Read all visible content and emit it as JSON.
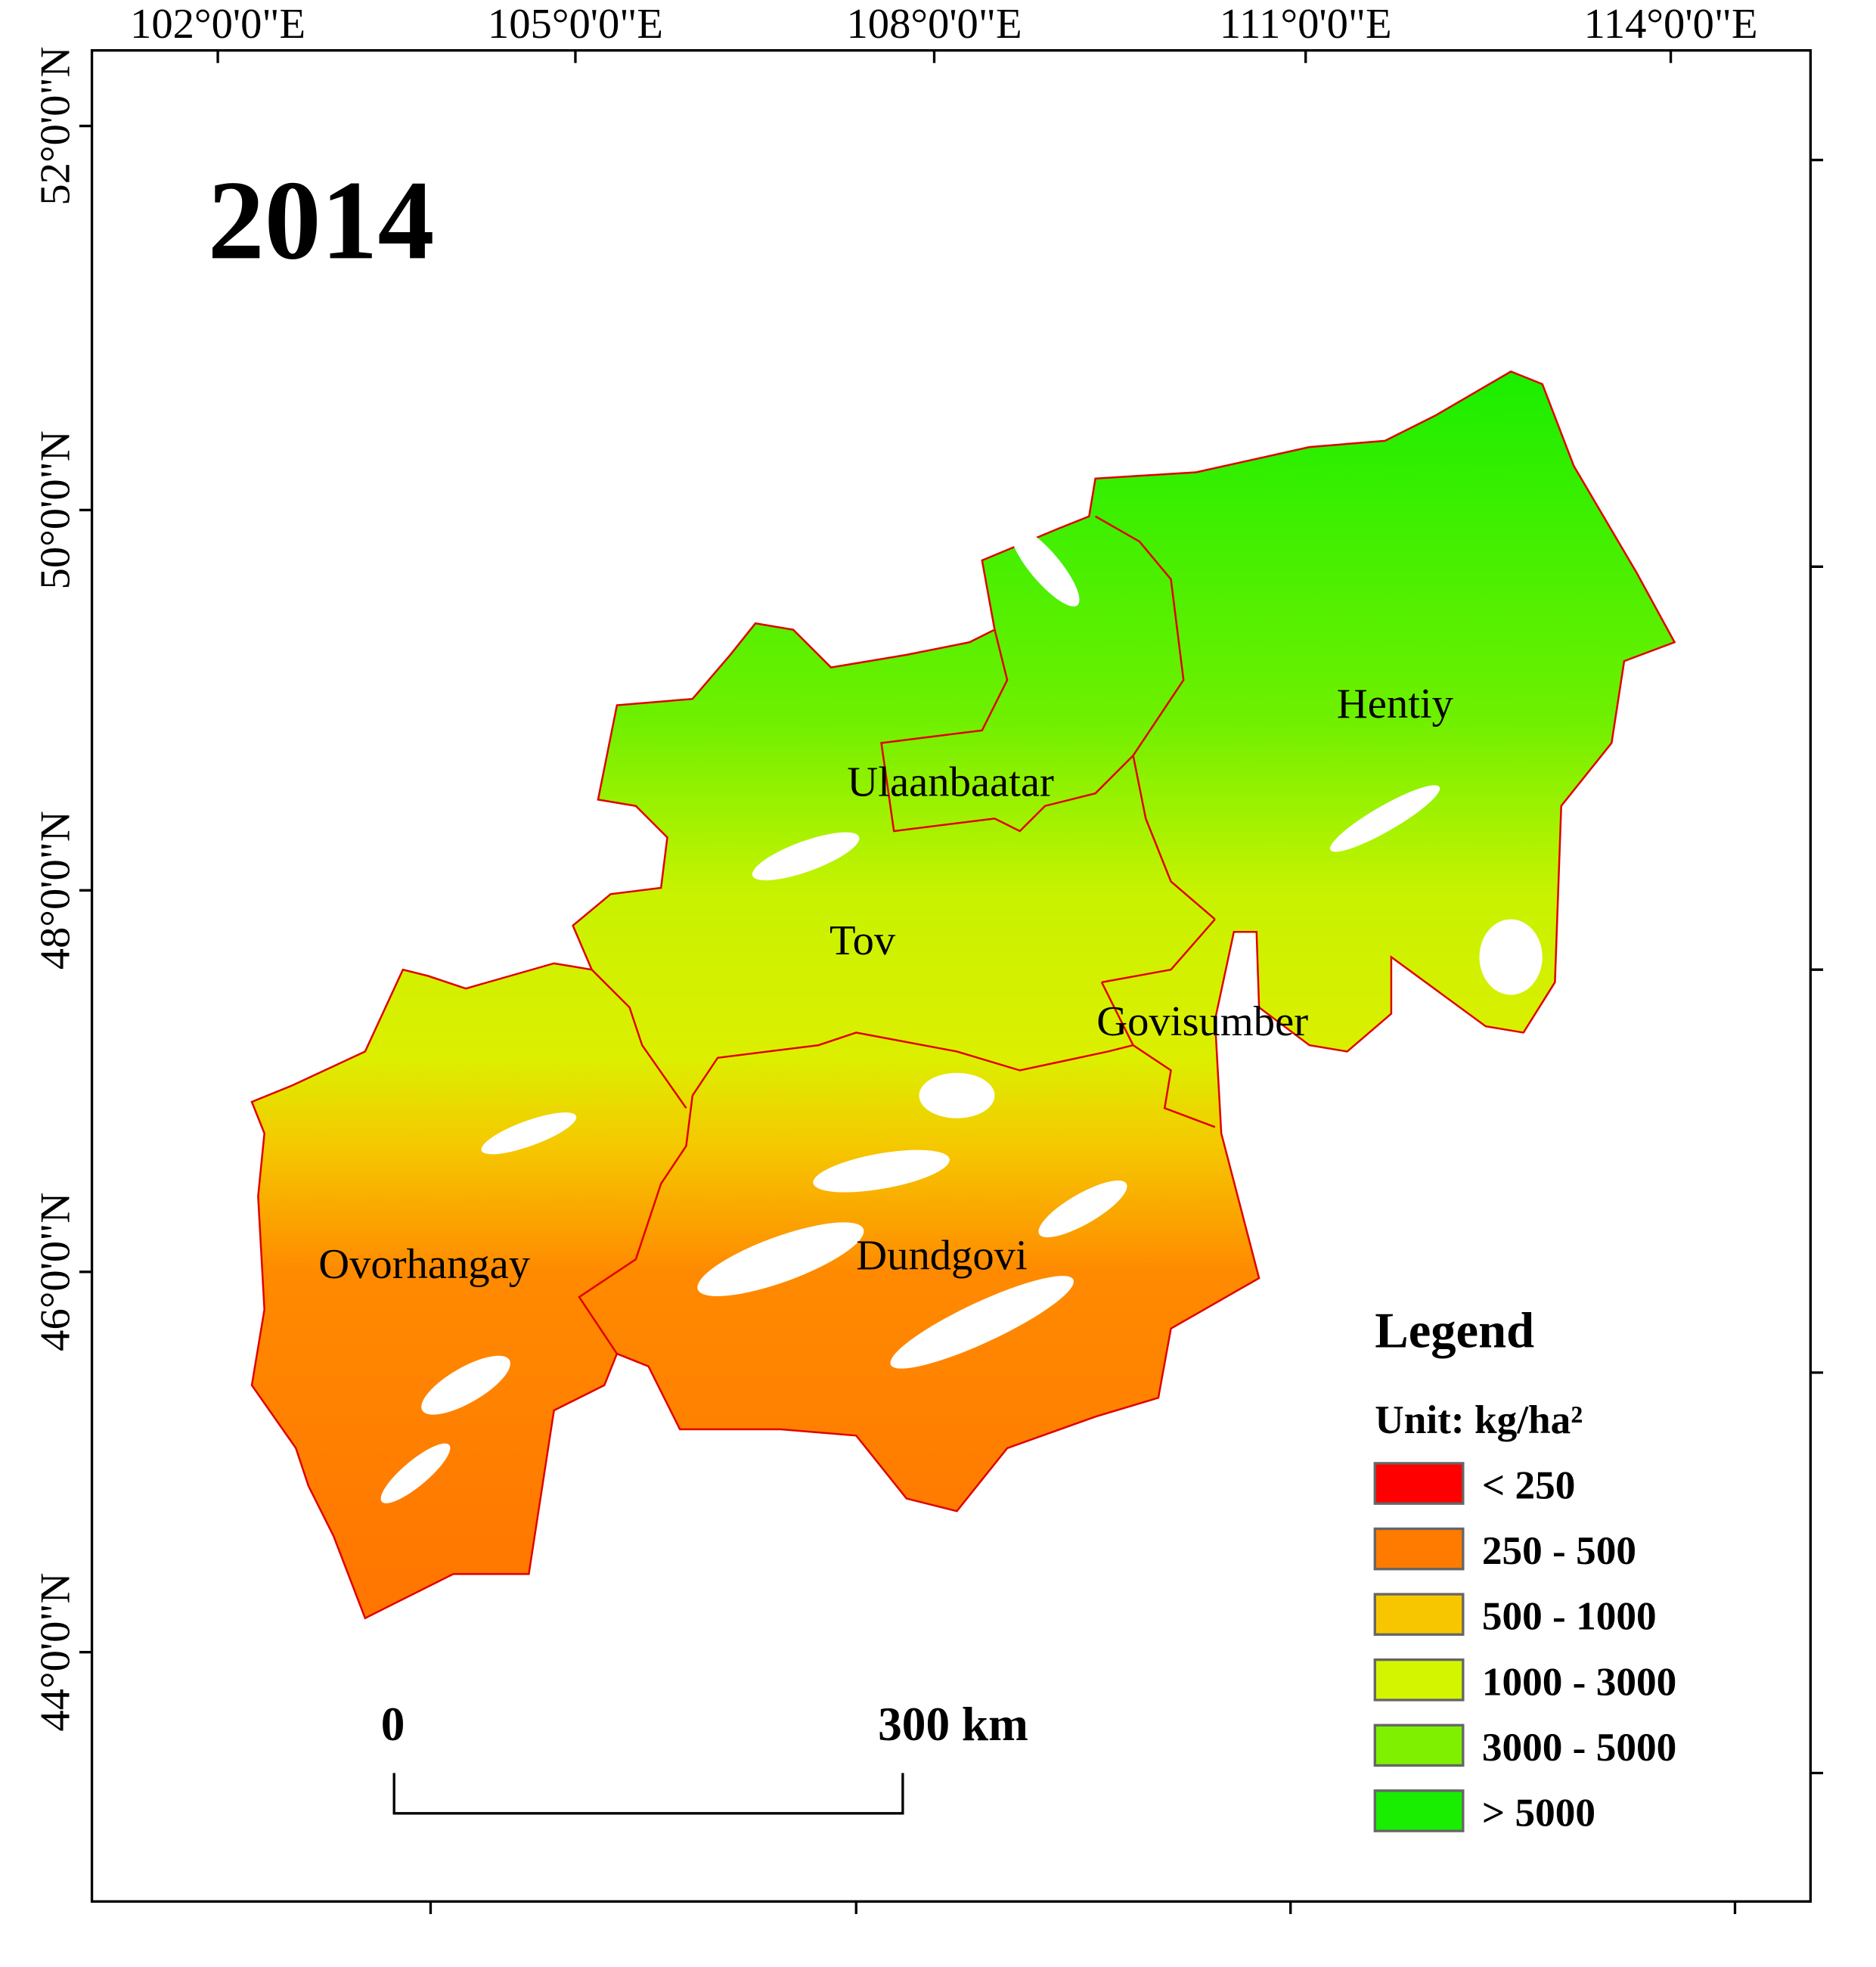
{
  "title": "2014",
  "longitude_labels": [
    "102°0'0\"E",
    "105°0'0\"E",
    "108°0'0\"E",
    "111°0'0\"E",
    "114°0'0\"E"
  ],
  "latitude_labels": [
    "52°0'0\"N",
    "50°0'0\"N",
    "48°0'0\"N",
    "46°0'0\"N",
    "44°0'0\"N"
  ],
  "regions": [
    "Hentiy",
    "Ulaanbaatar",
    "Tov",
    "Govisumber",
    "Ovorhangay",
    "Dundgovi"
  ],
  "legend": {
    "title": "Legend",
    "unit": "Unit: kg/ha²",
    "items": [
      {
        "label": "< 250",
        "color": "#ff0000"
      },
      {
        "label": "250 - 500",
        "color": "#ff7b00"
      },
      {
        "label": "500 - 1000",
        "color": "#f8c600"
      },
      {
        "label": "1000 - 3000",
        "color": "#d4f500"
      },
      {
        "label": "3000 - 5000",
        "color": "#7ef000"
      },
      {
        "label": "> 5000",
        "color": "#19ee00"
      }
    ]
  },
  "scale_bar": {
    "start": "0",
    "end": "300 km"
  }
}
